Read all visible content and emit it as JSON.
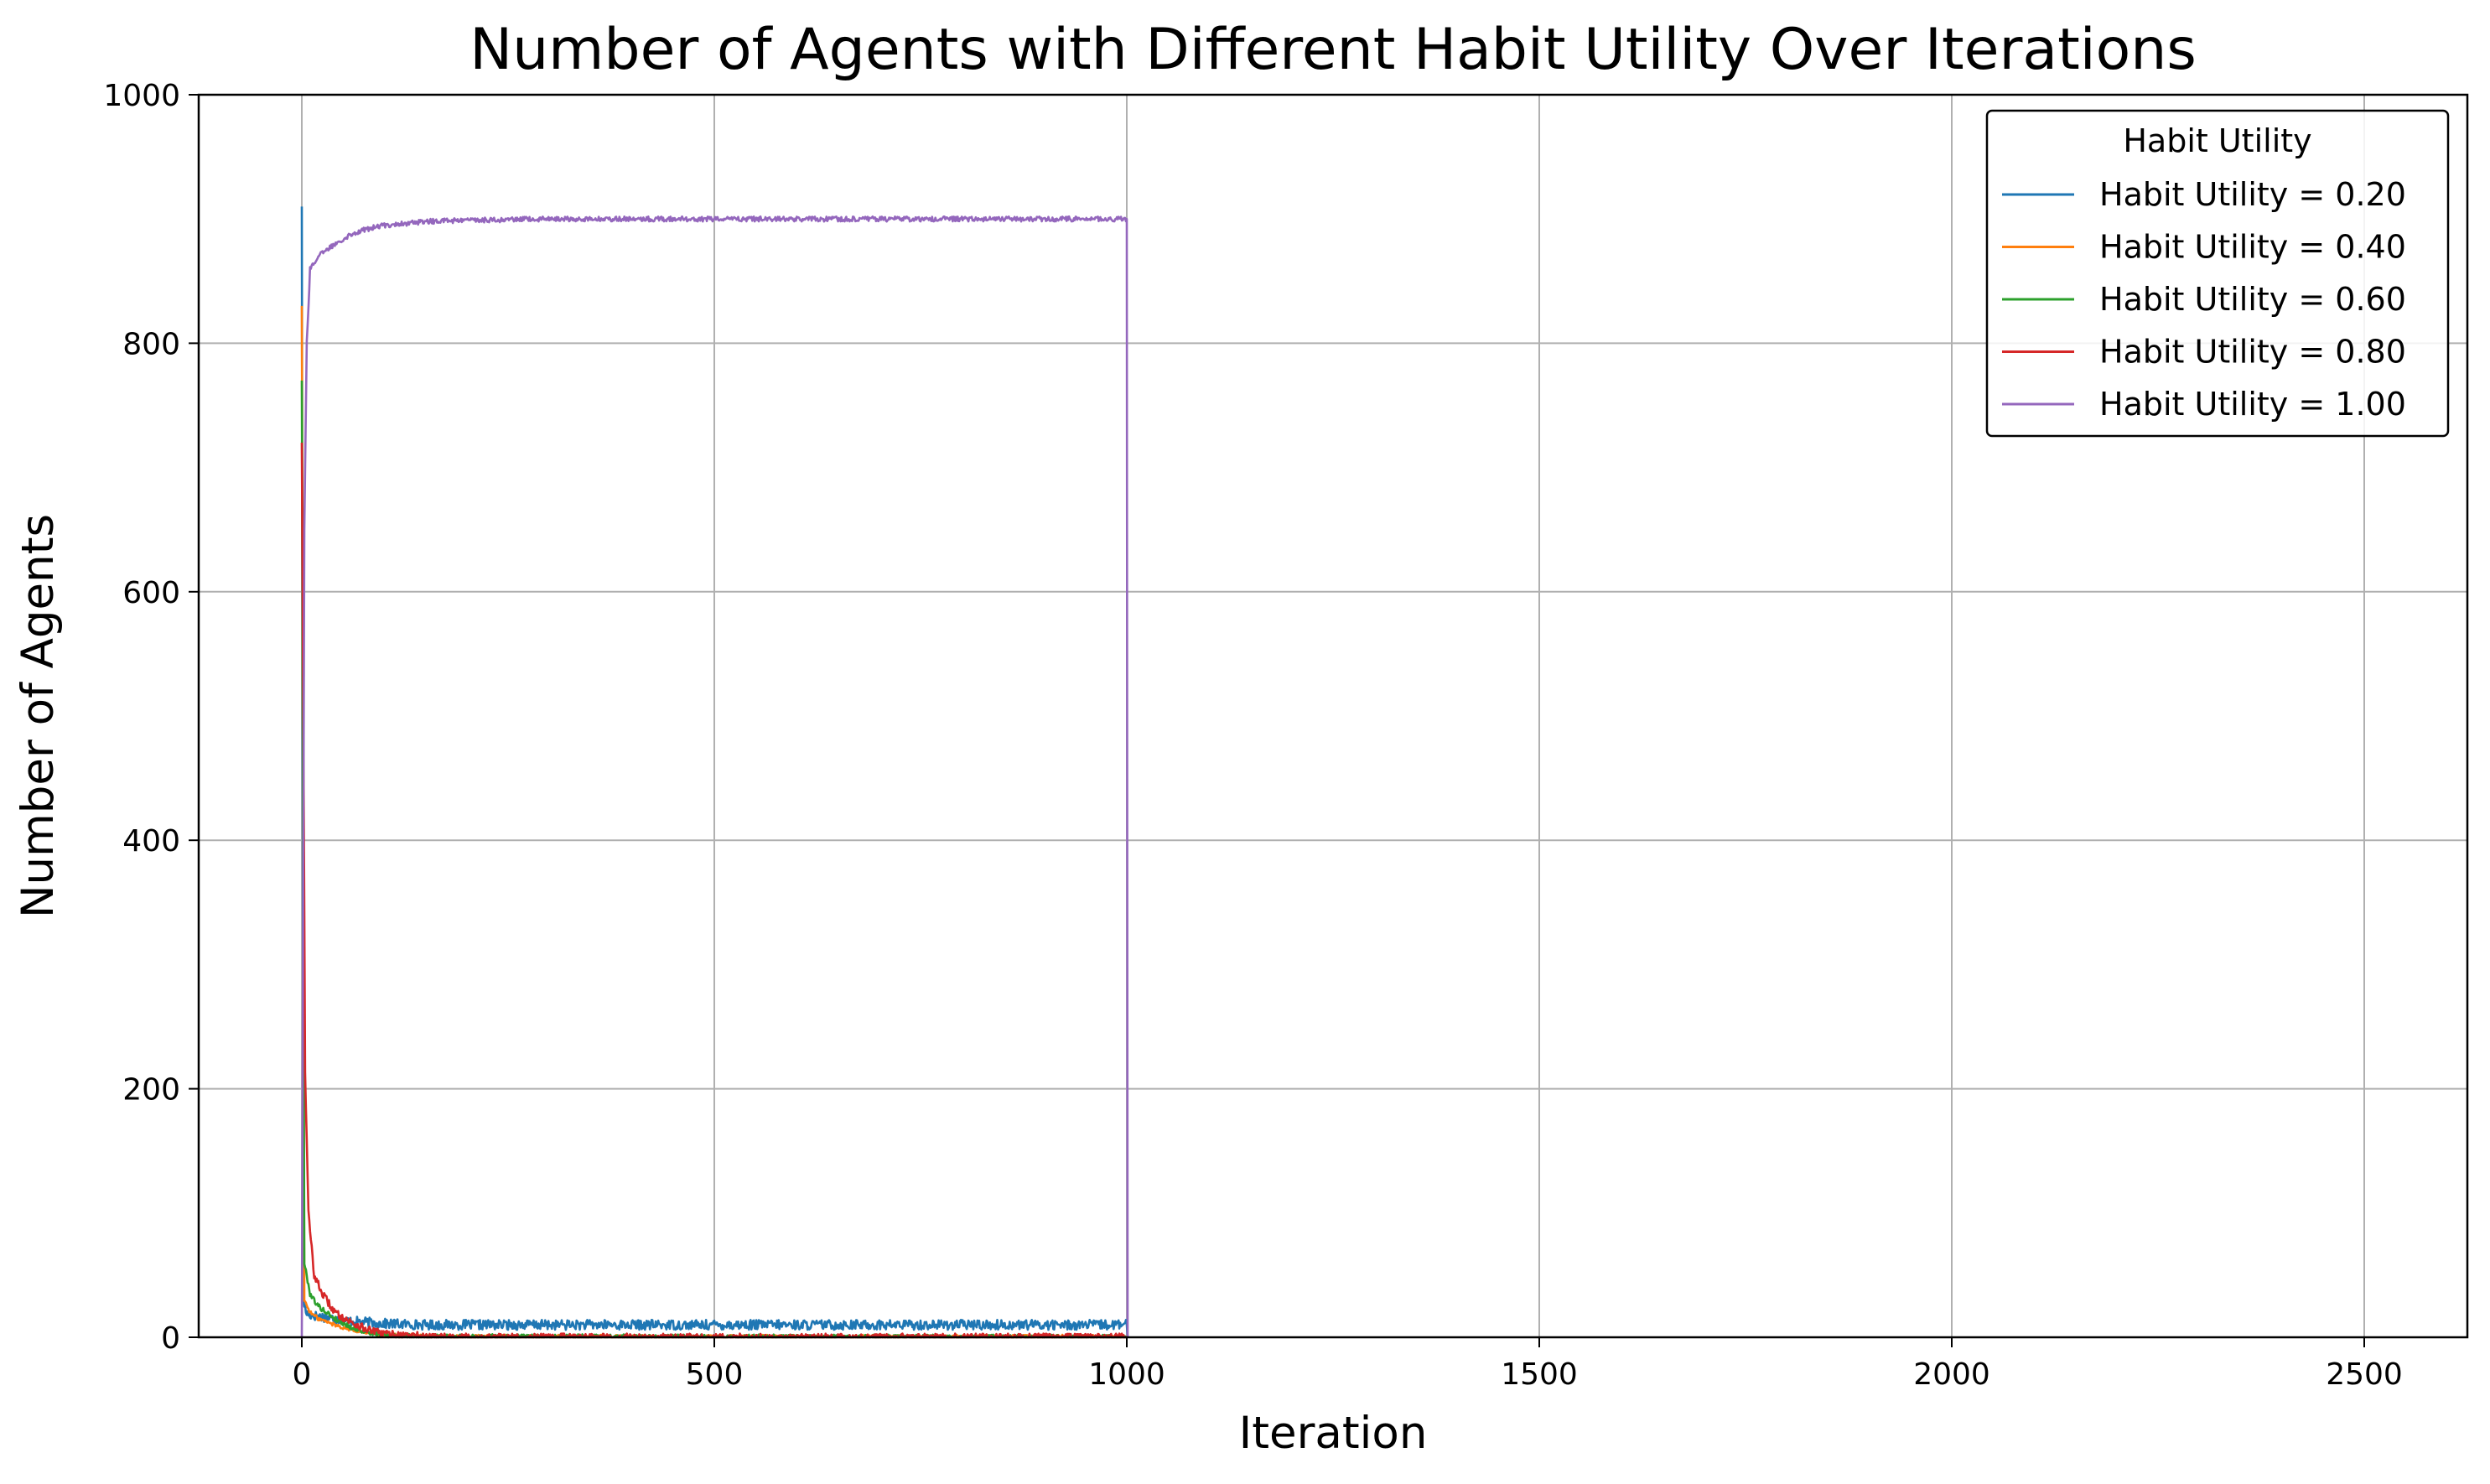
{
  "chart_data": {
    "type": "line",
    "title": "Number of Agents with Different Habit Utility Over Iterations",
    "xlabel": "Iteration",
    "ylabel": "Number of Agents",
    "xlim": [
      -125,
      2625
    ],
    "ylim": [
      0,
      1000
    ],
    "xticks": [
      0,
      500,
      1000,
      1500,
      2000,
      2500
    ],
    "yticks": [
      0,
      200,
      400,
      600,
      800,
      1000
    ],
    "grid": true,
    "legend": {
      "title": "Habit Utility",
      "placement": "top-right"
    },
    "series": [
      {
        "name": "Habit Utility = 0.20",
        "color": "#1f77b4",
        "points": [
          [
            0,
            910
          ],
          [
            2,
            30
          ],
          [
            5,
            20
          ],
          [
            10,
            18
          ],
          [
            20,
            17
          ],
          [
            40,
            15
          ],
          [
            60,
            13
          ],
          [
            80,
            12
          ],
          [
            100,
            11
          ],
          [
            150,
            10
          ],
          [
            200,
            10
          ],
          [
            300,
            10
          ],
          [
            400,
            10
          ],
          [
            500,
            10
          ],
          [
            600,
            10
          ],
          [
            700,
            10
          ],
          [
            800,
            10
          ],
          [
            900,
            10
          ],
          [
            1000,
            10
          ],
          [
            1001,
            0
          ]
        ],
        "noise": 4
      },
      {
        "name": "Habit Utility = 0.40",
        "color": "#ff7f0e",
        "points": [
          [
            0,
            830
          ],
          [
            3,
            30
          ],
          [
            10,
            20
          ],
          [
            20,
            15
          ],
          [
            40,
            10
          ],
          [
            60,
            6
          ],
          [
            80,
            4
          ],
          [
            100,
            2
          ],
          [
            150,
            1
          ],
          [
            200,
            0.5
          ],
          [
            1000,
            0.5
          ],
          [
            1001,
            0
          ]
        ],
        "noise": 1.5
      },
      {
        "name": "Habit Utility = 0.60",
        "color": "#2ca02c",
        "points": [
          [
            0,
            770
          ],
          [
            3,
            60
          ],
          [
            10,
            35
          ],
          [
            20,
            25
          ],
          [
            40,
            15
          ],
          [
            60,
            8
          ],
          [
            80,
            4
          ],
          [
            100,
            2
          ],
          [
            150,
            0.5
          ],
          [
            1000,
            0
          ],
          [
            1001,
            0
          ]
        ],
        "noise": 2
      },
      {
        "name": "Habit Utility = 0.80",
        "color": "#d62728",
        "points": [
          [
            0,
            720
          ],
          [
            4,
            215
          ],
          [
            8,
            100
          ],
          [
            15,
            50
          ],
          [
            25,
            35
          ],
          [
            40,
            20
          ],
          [
            60,
            12
          ],
          [
            80,
            6
          ],
          [
            100,
            3
          ],
          [
            150,
            1
          ],
          [
            200,
            0
          ],
          [
            1000,
            0
          ],
          [
            1001,
            0
          ]
        ],
        "noise": 3
      },
      {
        "name": "Habit Utility = 1.00",
        "color": "#9467bd",
        "points": [
          [
            0,
            0
          ],
          [
            3,
            650
          ],
          [
            6,
            800
          ],
          [
            10,
            860
          ],
          [
            20,
            870
          ],
          [
            40,
            880
          ],
          [
            60,
            888
          ],
          [
            80,
            892
          ],
          [
            100,
            895
          ],
          [
            150,
            898
          ],
          [
            200,
            899
          ],
          [
            300,
            900
          ],
          [
            400,
            900
          ],
          [
            500,
            900
          ],
          [
            600,
            900
          ],
          [
            700,
            900
          ],
          [
            800,
            900
          ],
          [
            900,
            900
          ],
          [
            1000,
            900
          ],
          [
            1001,
            0
          ]
        ],
        "noise": 2
      }
    ]
  }
}
